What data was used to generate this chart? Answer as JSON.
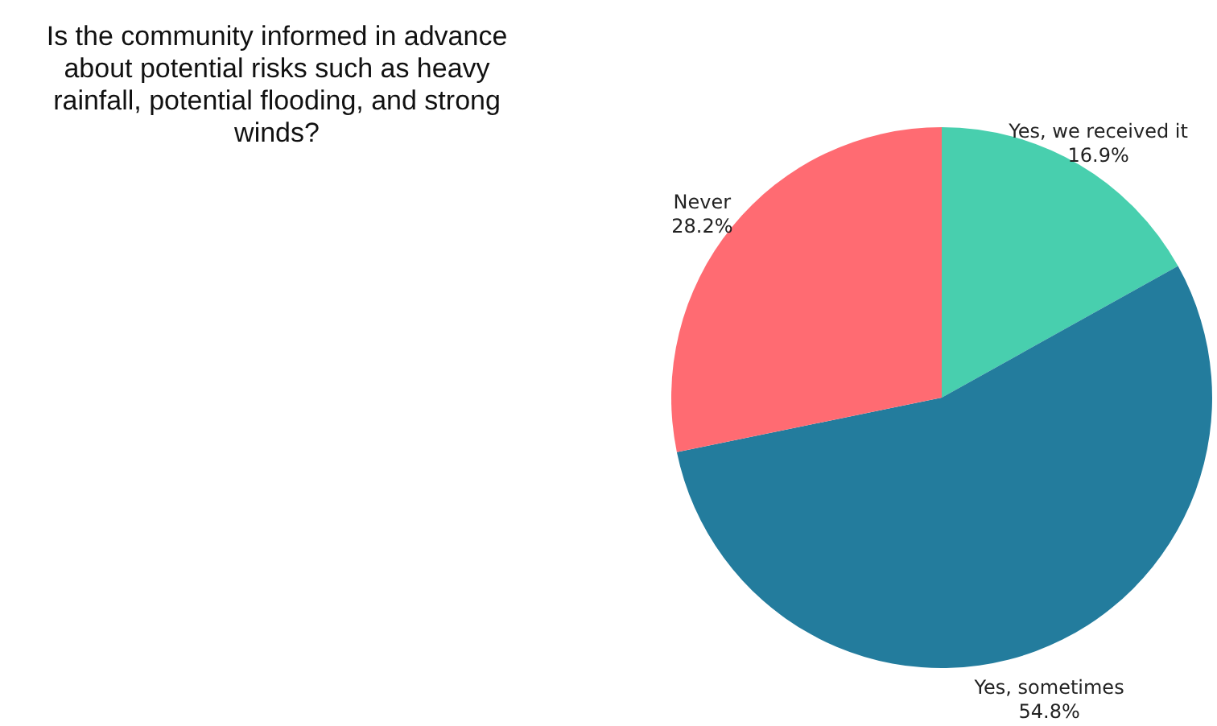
{
  "chart_data": {
    "type": "pie",
    "title": "Is the community informed in advance about potential risks such as heavy rainfall, potential flooding, and strong winds?",
    "categories": [
      "Yes, we received it",
      "Yes, sometimes",
      "Never"
    ],
    "values": [
      16.9,
      54.8,
      28.2
    ],
    "value_labels": [
      "16.9%",
      "54.8%",
      "28.2%"
    ],
    "colors": [
      "#48cfae",
      "#237c9d",
      "#ff6b72"
    ],
    "legend": false
  }
}
